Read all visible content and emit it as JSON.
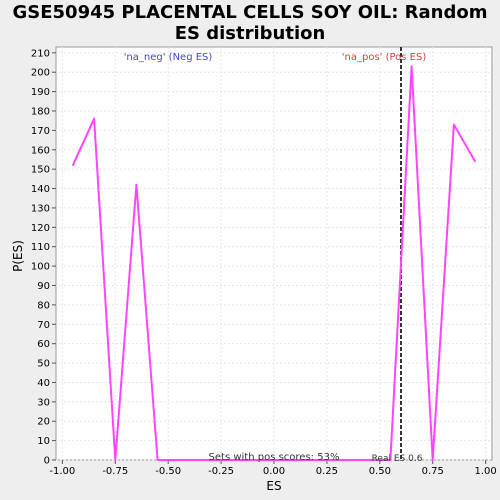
{
  "chart_data": {
    "type": "line",
    "title_line1": "GSE50945 PLACENTAL CELLS SOY OIL: Random",
    "title_line2": "ES distribution",
    "xlabel": "ES",
    "ylabel": "P(ES)",
    "xlim": [
      -1.03,
      1.03
    ],
    "ylim": [
      0,
      213
    ],
    "x_ticks": [
      -1.0,
      -0.75,
      -0.5,
      -0.25,
      0.0,
      0.25,
      0.5,
      0.75,
      1.0
    ],
    "x_tick_labels": [
      "-1.00",
      "-0.75",
      "-0.50",
      "-0.25",
      "0.00",
      "0.25",
      "0.50",
      "0.75",
      "1.00"
    ],
    "y_ticks": [
      0,
      10,
      20,
      30,
      40,
      50,
      60,
      70,
      80,
      90,
      100,
      110,
      120,
      130,
      140,
      150,
      160,
      170,
      180,
      190,
      200,
      210
    ],
    "grid": true,
    "series": [
      {
        "color": "#ff44ff",
        "x": [
          -0.95,
          -0.85,
          -0.75,
          -0.65,
          -0.55,
          -0.45,
          -0.35,
          -0.25,
          -0.15,
          -0.05,
          0.05,
          0.15,
          0.25,
          0.35,
          0.45,
          0.55,
          0.65,
          0.75,
          0.85,
          0.95
        ],
        "y": [
          152,
          176,
          0,
          142,
          0,
          0,
          0,
          0,
          0,
          0,
          0,
          0,
          0,
          0,
          0,
          0,
          203,
          0,
          173,
          154
        ]
      }
    ],
    "real_es": {
      "x": 0.6,
      "label": "Real ES 0.6",
      "color": "#333333"
    },
    "annotations": {
      "neg_label": "'na_neg' (Neg ES)",
      "neg_color": "#4444cc",
      "pos_label": "'na_pos' (Pos ES)",
      "pos_color": "#cc4444",
      "pos_scores": "Sets with pos scores: 53%"
    }
  }
}
